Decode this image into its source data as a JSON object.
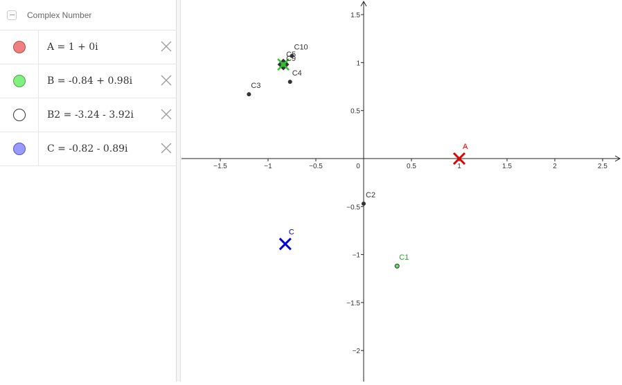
{
  "algebra": {
    "group_title": "Complex Number",
    "rows": [
      {
        "expr": "A = 1 + 0i",
        "color": "#f08080",
        "border": "#b05050"
      },
      {
        "expr": "B = -0.84 + 0.98i",
        "color": "#80f080",
        "border": "#50a050"
      },
      {
        "expr": "B2 = -3.24 - 3.92i",
        "color": "#ffffff",
        "border": "#333333"
      },
      {
        "expr": "C = -0.82 - 0.89i",
        "color": "#9999ff",
        "border": "#5555bb"
      }
    ]
  },
  "graph": {
    "x_ticks": [
      "−1.5",
      "−1",
      "−0.5",
      "0",
      "0.5",
      "1",
      "1.5",
      "2",
      "2.5"
    ],
    "y_ticks": [
      "1.5",
      "1",
      "0.5",
      "−0.5",
      "−1",
      "−1.5",
      "−2"
    ],
    "x_tick_values": [
      -1.5,
      -1,
      -0.5,
      0,
      0.5,
      1,
      1.5,
      2,
      2.5
    ],
    "y_tick_values": [
      1.5,
      1,
      0.5,
      -0.5,
      -1,
      -1.5,
      -2
    ],
    "points": [
      {
        "label": "A",
        "x": 1,
        "y": 0,
        "color": "#e00000",
        "marker": "cross"
      },
      {
        "label": "B",
        "x": -0.84,
        "y": 0.98,
        "color": "#22cc22",
        "marker": "cross-small"
      },
      {
        "label": "C",
        "x": -0.82,
        "y": -0.89,
        "color": "#0000dd",
        "marker": "cross"
      },
      {
        "label": "C1",
        "x": 0.35,
        "y": -1.12,
        "color": "#22aa22",
        "marker": "dot-green"
      },
      {
        "label": "C2",
        "x": 0,
        "y": -0.47,
        "color": "#333333",
        "marker": "dot"
      },
      {
        "label": "C3",
        "x": -1.2,
        "y": 0.67,
        "color": "#333333",
        "marker": "dot"
      },
      {
        "label": "C4",
        "x": -0.77,
        "y": 0.8,
        "color": "#333333",
        "marker": "dot"
      },
      {
        "label": "C10",
        "x": -0.75,
        "y": 1.07,
        "color": "#333333",
        "marker": "dot"
      }
    ]
  }
}
